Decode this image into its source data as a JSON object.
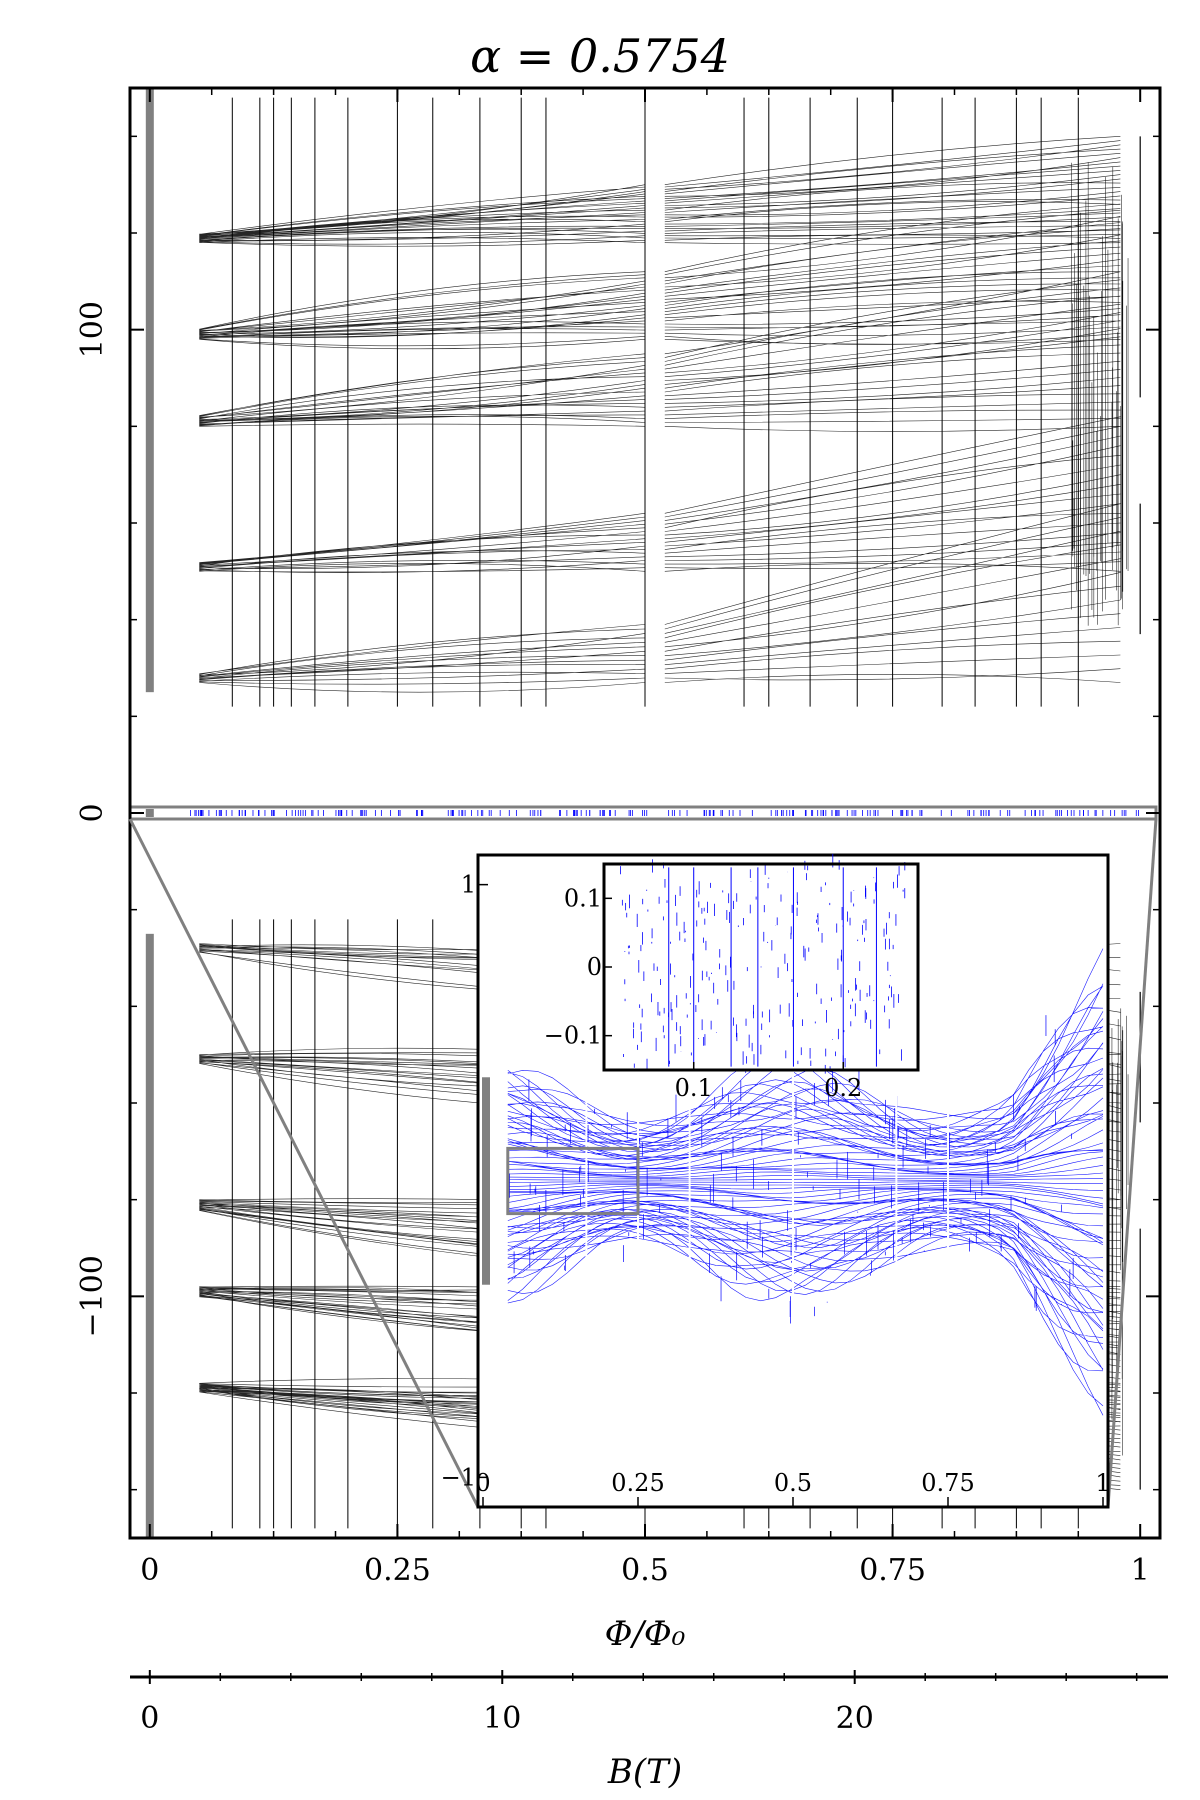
{
  "chart_data": [
    {
      "type": "scatter",
      "title": "α = 0.5754",
      "xlabel": "Φ/Φ₀",
      "ylabel": "",
      "xlim": [
        -0.02,
        1.02
      ],
      "ylim": [
        -150,
        150
      ],
      "xticks": [
        0,
        0.25,
        0.5,
        0.75,
        1
      ],
      "xtick_labels": [
        "0",
        "0.25",
        "0.5",
        "0.75",
        "1"
      ],
      "yticks": [
        -100,
        0,
        100
      ],
      "ytick_labels": [
        "−100",
        "0",
        "100"
      ],
      "series": [
        {
          "color": "#000000",
          "description_only": false,
          "bands_upper": [
            {
              "y0": 27,
              "y1_at_half": 39,
              "y1_at_one": 64
            },
            {
              "y0": 50,
              "y1_at_half": 62,
              "y1_at_one": 82
            },
            {
              "y0": 80,
              "y1_at_half": 95,
              "y1_at_one": 112
            },
            {
              "y0": 98,
              "y1_at_half": 112,
              "y1_at_one": 126
            },
            {
              "y0": 118,
              "y1_at_half": 130,
              "y1_at_one": 140
            }
          ]
        },
        {
          "color": "#0000ff",
          "band_center": 0
        }
      ],
      "zero_field_bands": [
        [
          25,
          150
        ],
        [
          -150,
          -25
        ]
      ],
      "secondary_axis": {
        "label": "B(T)",
        "ticks": [
          0,
          10,
          20
        ],
        "tick_labels": [
          "0",
          "10",
          "20"
        ],
        "tesla_per_flux_quantum": 28.1
      }
    },
    {
      "type": "scatter",
      "inset": "zoom of the central band",
      "xlim": [
        0,
        1
      ],
      "ylim": [
        -1.1,
        1.1
      ],
      "xticks": [
        0,
        0.25,
        0.5,
        0.75,
        1
      ],
      "xtick_labels": [
        "0",
        "0.25",
        "0.5",
        "0.75",
        "1"
      ],
      "yticks": [
        -1,
        1
      ],
      "ytick_labels": [
        "−1",
        "1"
      ],
      "color": "#0000ff"
    },
    {
      "type": "scatter",
      "inset": "second-level zoom",
      "xlim": [
        0.04,
        0.25
      ],
      "ylim": [
        -0.15,
        0.15
      ],
      "xticks": [
        0.1,
        0.2
      ],
      "xtick_labels": [
        "0.1",
        "0.2"
      ],
      "yticks": [
        -0.1,
        0,
        0.1
      ],
      "ytick_labels": [
        "−0.1",
        "0",
        "0.1"
      ],
      "color": "#0000ff"
    }
  ],
  "colors": {
    "main_spectrum": "#000000",
    "inset_spectrum": "#0000ff",
    "zoom_frame": "#808080"
  }
}
